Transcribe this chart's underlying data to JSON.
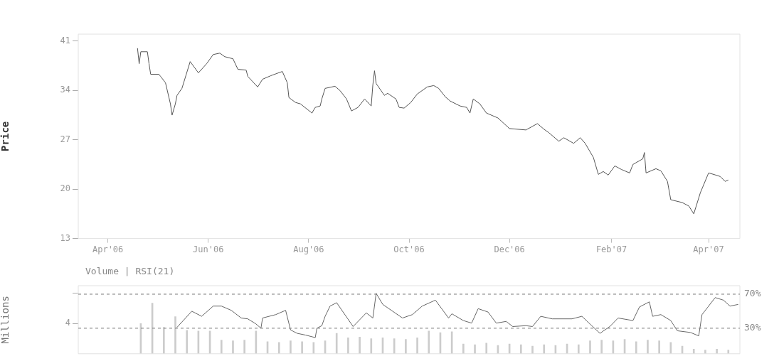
{
  "chart_data": [
    {
      "type": "line",
      "ylabel": "Price",
      "xlim": [
        "2006-03-14",
        "2007-04-20"
      ],
      "ylim": [
        13,
        42
      ],
      "xticks": [
        {
          "value": "2006-04-01",
          "label": "Apr'06"
        },
        {
          "value": "2006-06-01",
          "label": "Jun'06"
        },
        {
          "value": "2006-08-01",
          "label": "Aug'06"
        },
        {
          "value": "2006-10-01",
          "label": "Oct'06"
        },
        {
          "value": "2006-12-01",
          "label": "Dec'06"
        },
        {
          "value": "2007-02-01",
          "label": "Feb'07"
        },
        {
          "value": "2007-04-01",
          "label": "Apr'07"
        }
      ],
      "yticks": [
        13,
        20,
        27,
        34,
        41
      ],
      "grid": false,
      "legend": false,
      "series": [
        {
          "color": "#555555",
          "x": [
            "2006-04-19",
            "2006-04-20",
            "2006-04-21",
            "2006-04-25",
            "2006-04-26",
            "2006-04-27",
            "2006-05-02",
            "2006-05-03",
            "2006-05-06",
            "2006-05-09",
            "2006-05-10",
            "2006-05-12",
            "2006-05-13",
            "2006-05-16",
            "2006-05-21",
            "2006-05-26",
            "2006-05-31",
            "2006-06-04",
            "2006-06-08",
            "2006-06-11",
            "2006-06-16",
            "2006-06-19",
            "2006-06-24",
            "2006-06-25",
            "2006-07-01",
            "2006-07-04",
            "2006-07-09",
            "2006-07-16",
            "2006-07-19",
            "2006-07-20",
            "2006-07-24",
            "2006-07-27",
            "2006-08-03",
            "2006-08-05",
            "2006-08-08",
            "2006-08-09",
            "2006-08-11",
            "2006-08-17",
            "2006-08-20",
            "2006-08-24",
            "2006-08-27",
            "2006-08-31",
            "2006-09-04",
            "2006-09-08",
            "2006-09-09",
            "2006-09-10",
            "2006-09-11",
            "2006-09-16",
            "2006-09-18",
            "2006-09-23",
            "2006-09-25",
            "2006-09-28",
            "2006-10-02",
            "2006-10-06",
            "2006-10-12",
            "2006-10-16",
            "2006-10-19",
            "2006-10-23",
            "2006-10-26",
            "2006-11-01",
            "2006-11-05",
            "2006-11-07",
            "2006-11-09",
            "2006-11-13",
            "2006-11-17",
            "2006-11-24",
            "2006-12-01",
            "2006-12-11",
            "2006-12-18",
            "2006-12-22",
            "2006-12-25",
            "2006-12-31",
            "2007-01-03",
            "2007-01-09",
            "2007-01-13",
            "2007-01-16",
            "2007-01-21",
            "2007-01-24",
            "2007-01-27",
            "2007-01-30",
            "2007-02-03",
            "2007-02-07",
            "2007-02-12",
            "2007-02-14",
            "2007-02-20",
            "2007-02-21",
            "2007-02-22",
            "2007-02-28",
            "2007-03-03",
            "2007-03-07",
            "2007-03-09",
            "2007-03-16",
            "2007-03-20",
            "2007-03-23",
            "2007-03-27",
            "2007-04-01",
            "2007-04-04",
            "2007-04-08",
            "2007-04-11",
            "2007-04-13"
          ],
          "values": [
            40.0,
            37.8,
            39.5,
            39.5,
            37.8,
            36.3,
            36.3,
            36.0,
            35.1,
            32.1,
            30.5,
            32.1,
            33.3,
            34.3,
            38.1,
            36.5,
            37.8,
            39.1,
            39.3,
            38.8,
            38.5,
            37.0,
            36.9,
            36.0,
            34.5,
            35.6,
            36.1,
            36.7,
            35.1,
            33.0,
            32.3,
            32.1,
            30.8,
            31.6,
            31.8,
            32.8,
            34.3,
            34.6,
            34.0,
            32.8,
            31.1,
            31.6,
            32.8,
            31.8,
            34.8,
            36.8,
            35.0,
            33.3,
            33.6,
            32.8,
            31.6,
            31.5,
            32.3,
            33.5,
            34.5,
            34.7,
            34.3,
            33.1,
            32.5,
            31.8,
            31.6,
            30.8,
            32.8,
            32.1,
            30.8,
            30.1,
            28.6,
            28.4,
            29.3,
            28.5,
            28.0,
            26.8,
            27.3,
            26.5,
            27.3,
            26.5,
            24.5,
            22.1,
            22.5,
            22.0,
            23.3,
            22.8,
            22.3,
            23.5,
            24.3,
            25.2,
            22.3,
            22.9,
            22.6,
            21.1,
            18.5,
            18.1,
            17.6,
            16.5,
            19.5,
            22.3,
            22.1,
            21.8,
            21.1,
            21.3
          ]
        }
      ]
    },
    {
      "type": "bar",
      "title": "Volume | RSI(21)",
      "ylabel": "Millions",
      "xlim": [
        "2006-03-14",
        "2007-04-20"
      ],
      "ylim": [
        0,
        9
      ],
      "yticks": [
        {
          "value": 4,
          "label": "4"
        },
        {
          "value": 8,
          "label": null
        }
      ],
      "y2lim": [
        0,
        80
      ],
      "tick_labels": "y",
      "grid": false,
      "legend": false,
      "ref_lines": [
        {
          "axis": "y2",
          "value": 70,
          "label": "70%",
          "color": "#777777",
          "line_style": "dashed"
        },
        {
          "axis": "y2",
          "value": 30,
          "label": "30%",
          "color": "#777777",
          "line_style": "dashed"
        }
      ],
      "series": [
        {
          "type": "bar",
          "color": "#cccccc",
          "x": [
            "2006-04-21",
            "2006-04-28",
            "2006-05-05",
            "2006-05-12",
            "2006-05-19",
            "2006-05-26",
            "2006-06-02",
            "2006-06-09",
            "2006-06-16",
            "2006-06-23",
            "2006-06-30",
            "2006-07-07",
            "2006-07-14",
            "2006-07-21",
            "2006-07-28",
            "2006-08-04",
            "2006-08-11",
            "2006-08-18",
            "2006-08-25",
            "2006-09-01",
            "2006-09-08",
            "2006-09-15",
            "2006-09-22",
            "2006-09-29",
            "2006-10-06",
            "2006-10-13",
            "2006-10-20",
            "2006-10-27",
            "2006-11-03",
            "2006-11-10",
            "2006-11-17",
            "2006-11-24",
            "2006-12-01",
            "2006-12-08",
            "2006-12-15",
            "2006-12-22",
            "2006-12-29",
            "2007-01-05",
            "2007-01-12",
            "2007-01-19",
            "2007-01-26",
            "2007-02-02",
            "2007-02-09",
            "2007-02-16",
            "2007-02-23",
            "2007-03-02",
            "2007-03-09",
            "2007-03-16",
            "2007-03-23",
            "2007-03-30",
            "2007-04-06",
            "2007-04-13"
          ],
          "values": [
            4.0,
            6.7,
            3.5,
            4.9,
            3.1,
            3.0,
            3.0,
            1.8,
            1.7,
            1.8,
            3.0,
            1.6,
            1.5,
            1.7,
            1.6,
            1.5,
            1.7,
            2.7,
            2.1,
            2.2,
            2.0,
            2.1,
            2.0,
            1.9,
            2.1,
            3.0,
            2.8,
            2.9,
            1.3,
            1.2,
            1.4,
            1.1,
            1.3,
            1.2,
            1.0,
            1.2,
            1.1,
            1.3,
            1.2,
            1.7,
            1.8,
            1.7,
            1.9,
            1.6,
            1.8,
            1.7,
            1.5,
            1.0,
            0.6,
            0.5,
            0.6,
            0.5
          ]
        },
        {
          "type": "line",
          "axis": "y2",
          "color": "#666666",
          "x": [
            "2006-05-13",
            "2006-05-22",
            "2006-05-28",
            "2006-06-04",
            "2006-06-09",
            "2006-06-15",
            "2006-06-21",
            "2006-06-25",
            "2006-06-30",
            "2006-07-03",
            "2006-07-04",
            "2006-07-12",
            "2006-07-18",
            "2006-07-21",
            "2006-07-25",
            "2006-07-30",
            "2006-08-05",
            "2006-08-06",
            "2006-08-09",
            "2006-08-11",
            "2006-08-14",
            "2006-08-18",
            "2006-08-28",
            "2006-09-05",
            "2006-09-09",
            "2006-09-11",
            "2006-09-15",
            "2006-09-27",
            "2006-10-03",
            "2006-10-09",
            "2006-10-17",
            "2006-10-25",
            "2006-10-27",
            "2006-11-03",
            "2006-11-08",
            "2006-11-12",
            "2006-11-18",
            "2006-11-23",
            "2006-11-29",
            "2006-12-03",
            "2006-12-11",
            "2006-12-15",
            "2006-12-20",
            "2006-12-27",
            "2007-01-08",
            "2007-01-14",
            "2007-01-20",
            "2007-01-25",
            "2007-01-31",
            "2007-02-05",
            "2007-02-14",
            "2007-02-18",
            "2007-02-24",
            "2007-02-26",
            "2007-03-03",
            "2007-03-09",
            "2007-03-13",
            "2007-03-21",
            "2007-03-26",
            "2007-03-28",
            "2007-04-05",
            "2007-04-10",
            "2007-04-14",
            "2007-04-19"
          ],
          "values": [
            31,
            50,
            44,
            56,
            56,
            51,
            42,
            41,
            35,
            30,
            42,
            46,
            51,
            28,
            24,
            22,
            19,
            30,
            33,
            44,
            56,
            60,
            32,
            48,
            42,
            71,
            58,
            42,
            46,
            56,
            63,
            42,
            47,
            39,
            36,
            53,
            49,
            36,
            38,
            32,
            33,
            32,
            44,
            41,
            41,
            44,
            33,
            24,
            32,
            42,
            39,
            55,
            61,
            44,
            46,
            39,
            27,
            25,
            21,
            46,
            66,
            63,
            56,
            58
          ]
        }
      ]
    }
  ]
}
